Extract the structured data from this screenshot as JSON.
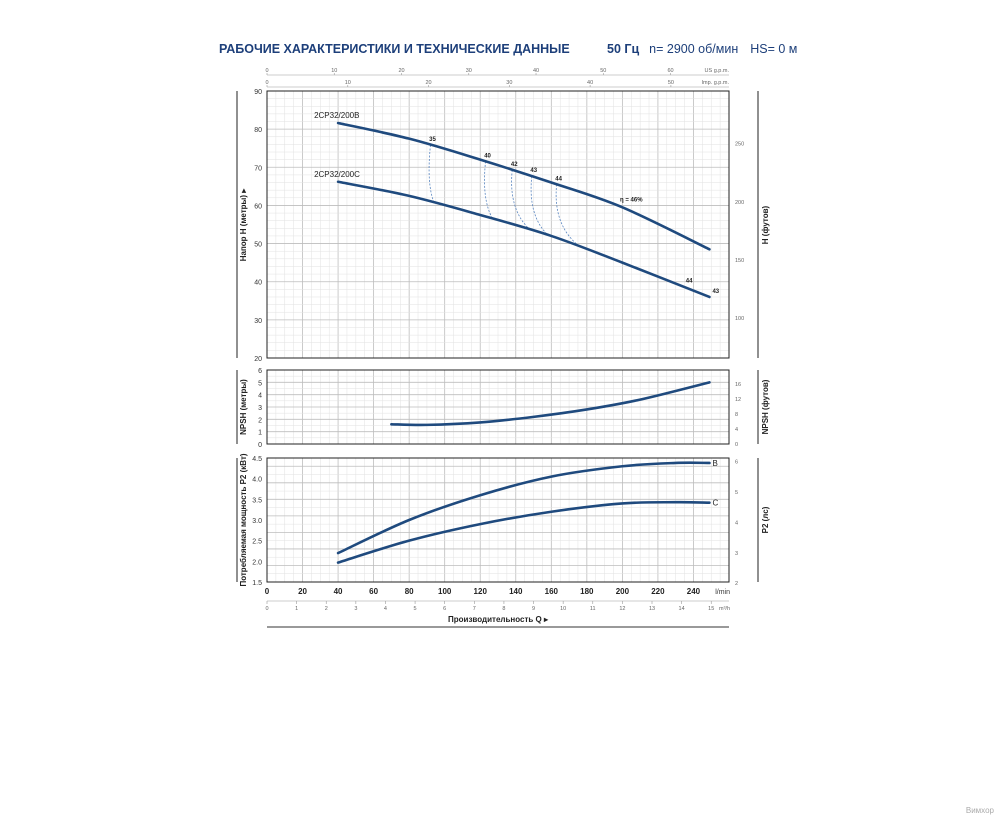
{
  "header": {
    "title": "РАБОЧИЕ ХАРАКТЕРИСТИКИ И ТЕХНИЧЕСКИЕ ДАННЫЕ",
    "frequency": "50 Гц",
    "speed": "n= 2900 об/мин",
    "hs": "HS= 0 м"
  },
  "watermark": "Вимхор",
  "chart_data": [
    {
      "type": "line",
      "title": "Head curve",
      "xlabel": "Производительность Q",
      "ylabel": "Напор H (метры)",
      "ylabel_right": "H (футов)",
      "xlim": [
        0,
        260
      ],
      "ylim": [
        20,
        90
      ],
      "x_unit": "l/min",
      "x_ticks": [
        0,
        20,
        40,
        60,
        80,
        100,
        120,
        140,
        160,
        180,
        200,
        220,
        240
      ],
      "y_ticks": [
        20,
        30,
        40,
        50,
        60,
        70,
        80,
        90
      ],
      "y_right_ticks": [
        100,
        150,
        200,
        250
      ],
      "grid": true,
      "series": [
        {
          "name": "2CP32/200B",
          "points": [
            [
              40,
              81.6
            ],
            [
              80,
              77.5
            ],
            [
              120,
              72
            ],
            [
              160,
              66
            ],
            [
              200,
              59.5
            ],
            [
              249,
              48.5
            ]
          ]
        },
        {
          "name": "2CP32/200C",
          "points": [
            [
              40,
              66.2
            ],
            [
              80,
              62.5
            ],
            [
              120,
              57.5
            ],
            [
              160,
              52
            ],
            [
              200,
              45
            ],
            [
              249,
              36
            ]
          ]
        }
      ],
      "efficiency_lines": [
        {
          "label": "35",
          "q_top": 92,
          "q_bottom": 94
        },
        {
          "label": "40",
          "q_top": 123,
          "q_bottom": 127
        },
        {
          "label": "42",
          "q_top": 138,
          "q_bottom": 148
        },
        {
          "label": "43",
          "q_top": 149,
          "q_bottom": 158
        },
        {
          "label": "44",
          "q_top": 163,
          "q_bottom": 176
        }
      ],
      "annotations": [
        {
          "text": "η = 46%",
          "series": "2CP32/200B",
          "q": 197
        },
        {
          "text": "44",
          "series": "2CP32/200C",
          "q": 234
        },
        {
          "text": "43",
          "series": "2CP32/200C",
          "q": 249
        }
      ],
      "top_axes": [
        {
          "label": "US g.p.m.",
          "ticks": [
            0,
            10,
            20,
            30,
            40,
            50,
            60
          ]
        },
        {
          "label": "Imp. g.p.m.",
          "ticks": [
            0,
            10,
            20,
            30,
            40,
            50
          ]
        }
      ]
    },
    {
      "type": "line",
      "title": "NPSH",
      "ylabel": "NPSH (метры)",
      "ylabel_right": "NPSH (футов)",
      "xlim": [
        0,
        260
      ],
      "ylim": [
        0,
        6
      ],
      "y_ticks": [
        0,
        1,
        2,
        3,
        4,
        5,
        6
      ],
      "y_right_ticks": [
        0,
        4,
        8,
        12,
        16
      ],
      "series": [
        {
          "name": "NPSH",
          "points": [
            [
              70,
              1.6
            ],
            [
              90,
              1.55
            ],
            [
              120,
              1.75
            ],
            [
              150,
              2.2
            ],
            [
              180,
              2.8
            ],
            [
              210,
              3.6
            ],
            [
              249,
              5.0
            ]
          ]
        }
      ]
    },
    {
      "type": "line",
      "title": "Power",
      "ylabel": "Потребляемая мощность P2 (кВт)",
      "ylabel_right": "P2 (лс)",
      "xlim": [
        0,
        260
      ],
      "ylim": [
        1.5,
        4.5
      ],
      "y_ticks": [
        "1.5",
        "2.0",
        "2.5",
        "3.0",
        "3.5",
        "4.0",
        "4.5"
      ],
      "y_right_ticks": [
        2,
        3,
        4,
        5,
        6
      ],
      "series": [
        {
          "name": "B",
          "points": [
            [
              40,
              2.2
            ],
            [
              80,
              3.0
            ],
            [
              120,
              3.6
            ],
            [
              160,
              4.05
            ],
            [
              200,
              4.3
            ],
            [
              230,
              4.38
            ],
            [
              249,
              4.38
            ]
          ]
        },
        {
          "name": "C",
          "points": [
            [
              40,
              1.97
            ],
            [
              80,
              2.5
            ],
            [
              120,
              2.9
            ],
            [
              160,
              3.2
            ],
            [
              200,
              3.4
            ],
            [
              230,
              3.43
            ],
            [
              249,
              3.42
            ]
          ]
        }
      ],
      "x_unit": "l/min",
      "x_ticks": [
        0,
        20,
        40,
        60,
        80,
        100,
        120,
        140,
        160,
        180,
        200,
        220,
        240
      ],
      "second_x_axis": {
        "unit": "m³/h",
        "ticks": [
          0,
          1,
          2,
          3,
          4,
          5,
          6,
          7,
          8,
          9,
          10,
          11,
          12,
          13,
          14,
          15
        ]
      }
    }
  ]
}
